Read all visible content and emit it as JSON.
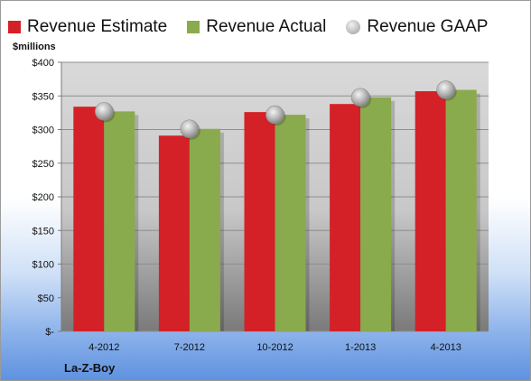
{
  "chart_data": {
    "type": "bar",
    "company": "La-Z-Boy",
    "ylabel": "$millions",
    "ylim": [
      0,
      400
    ],
    "yticks": [
      {
        "value": 0,
        "label": "$-"
      },
      {
        "value": 50,
        "label": "$50"
      },
      {
        "value": 100,
        "label": "$100"
      },
      {
        "value": 150,
        "label": "$150"
      },
      {
        "value": 200,
        "label": "$200"
      },
      {
        "value": 250,
        "label": "$250"
      },
      {
        "value": 300,
        "label": "$300"
      },
      {
        "value": 350,
        "label": "$350"
      },
      {
        "value": 400,
        "label": "$400"
      }
    ],
    "categories": [
      "4-2012",
      "7-2012",
      "10-2012",
      "1-2013",
      "4-2013"
    ],
    "series": [
      {
        "name": "Revenue Estimate",
        "kind": "bar",
        "color": "#d42127",
        "values": [
          334,
          291,
          326,
          338,
          357
        ]
      },
      {
        "name": "Revenue Actual",
        "kind": "bar",
        "color": "#8aaa4e",
        "values": [
          327,
          301,
          322,
          348,
          359
        ]
      },
      {
        "name": "Revenue GAAP",
        "kind": "marker",
        "color": "#a9a9a9",
        "values": [
          327,
          301,
          322,
          348,
          359
        ]
      }
    ],
    "legend": "top",
    "grid": true
  }
}
